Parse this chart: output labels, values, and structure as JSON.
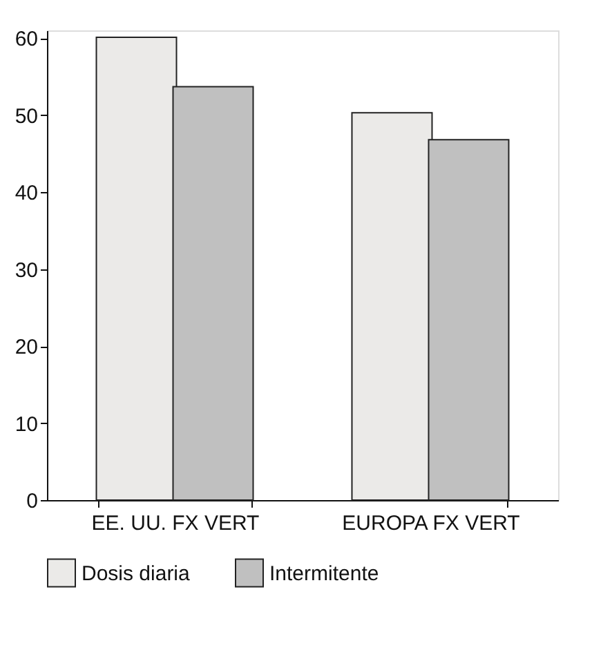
{
  "chart_data": {
    "type": "bar",
    "categories": [
      "EE. UU. FX VERT",
      "EUROPA FX VERT"
    ],
    "series": [
      {
        "name": "Dosis diaria",
        "color": "#ebeae8",
        "values": [
          60.1,
          50.3
        ]
      },
      {
        "name": "Intermitente",
        "color": "#c0c0c0",
        "values": [
          53.7,
          46.8
        ]
      }
    ],
    "ylim": [
      0,
      61
    ],
    "yticks": [
      0,
      10,
      20,
      30,
      40,
      50,
      60
    ],
    "grid": false,
    "legend": "bottom"
  }
}
